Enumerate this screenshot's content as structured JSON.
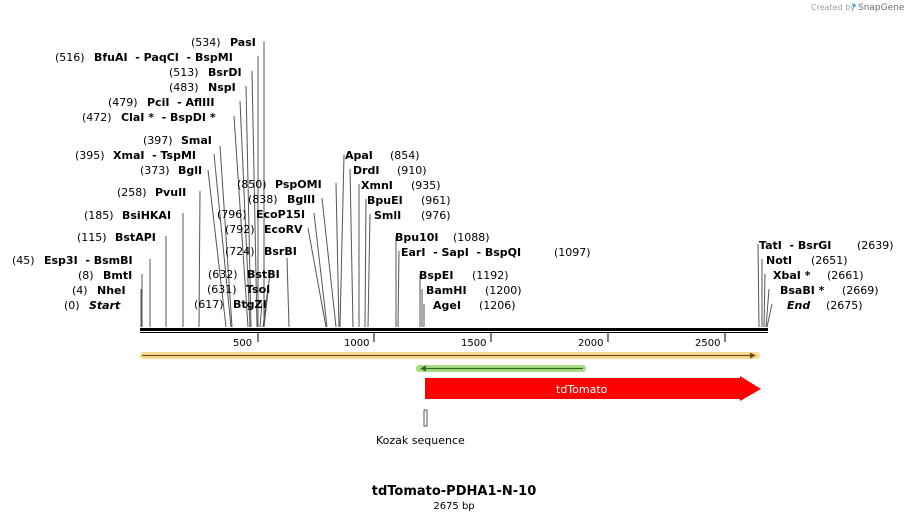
{
  "credit": {
    "prefix": "Created by",
    "brand": "SnapGene"
  },
  "map": {
    "title": "tdTomato-PDHA1-N-10",
    "length_label": "2675 bp",
    "length": 2675,
    "ticks": [
      "500",
      "1000",
      "1500",
      "2000",
      "2500"
    ]
  },
  "sites": [
    {
      "pos": "(534)",
      "name": "PasI"
    },
    {
      "pos": "(516)",
      "name": "BfuAI  - PaqCI  - BspMI"
    },
    {
      "pos": "(513)",
      "name": "BsrDI"
    },
    {
      "pos": "(483)",
      "name": "NspI"
    },
    {
      "pos": "(479)",
      "name": "PciI  - AflIII"
    },
    {
      "pos": "(472)",
      "name": "ClaI *  - BspDI *"
    },
    {
      "pos": "(397)",
      "name": "SmaI"
    },
    {
      "pos": "(395)",
      "name": "XmaI  - TspMI"
    },
    {
      "pos": "(373)",
      "name": "BglI"
    },
    {
      "pos": "(258)",
      "name": "PvuII"
    },
    {
      "pos": "(185)",
      "name": "BsiHKAI"
    },
    {
      "pos": "(115)",
      "name": "BstAPI"
    },
    {
      "pos": "(45)",
      "name": "Esp3I  - BsmBI"
    },
    {
      "pos": "(8)",
      "name": "BmtI"
    },
    {
      "pos": "(4)",
      "name": "NheI"
    },
    {
      "pos": "(0)",
      "name": "Start"
    },
    {
      "pos": "(850)",
      "name": "PspOMI"
    },
    {
      "pos": "(838)",
      "name": "BglII"
    },
    {
      "pos": "(796)",
      "name": "EcoP15I"
    },
    {
      "pos": "(792)",
      "name": "EcoRV"
    },
    {
      "pos": "(724)",
      "name": "BsrBI"
    },
    {
      "pos": "(632)",
      "name": "BstBI"
    },
    {
      "pos": "(631)",
      "name": "TsoI"
    },
    {
      "pos": "(617)",
      "name": "BtgZI"
    },
    {
      "pos": "(854)",
      "name": "ApaI"
    },
    {
      "pos": "(910)",
      "name": "DrdI"
    },
    {
      "pos": "(935)",
      "name": "XmnI"
    },
    {
      "pos": "(961)",
      "name": "BpuEI"
    },
    {
      "pos": "(976)",
      "name": "SmlI"
    },
    {
      "pos": "(1088)",
      "name": "Bpu10I"
    },
    {
      "pos": "(1097)",
      "name": "EarI  - SapI  - BspQI"
    },
    {
      "pos": "(1192)",
      "name": "BspEI"
    },
    {
      "pos": "(1200)",
      "name": "BamHI"
    },
    {
      "pos": "(1206)",
      "name": "AgeI"
    },
    {
      "pos": "(2639)",
      "name": "TatI  - BsrGI"
    },
    {
      "pos": "(2651)",
      "name": "NotI"
    },
    {
      "pos": "(2661)",
      "name": "XbaI *"
    },
    {
      "pos": "(2669)",
      "name": "BsaBI *"
    },
    {
      "pos": "(2675)",
      "name": "End"
    }
  ],
  "features": {
    "tdtomato_label": "tdTomato",
    "tdtomato_color": "#ff0000",
    "kozak_label": "Kozak sequence",
    "orf_top_color": "#f0c060",
    "orf_green_color": "#8fce6a"
  }
}
